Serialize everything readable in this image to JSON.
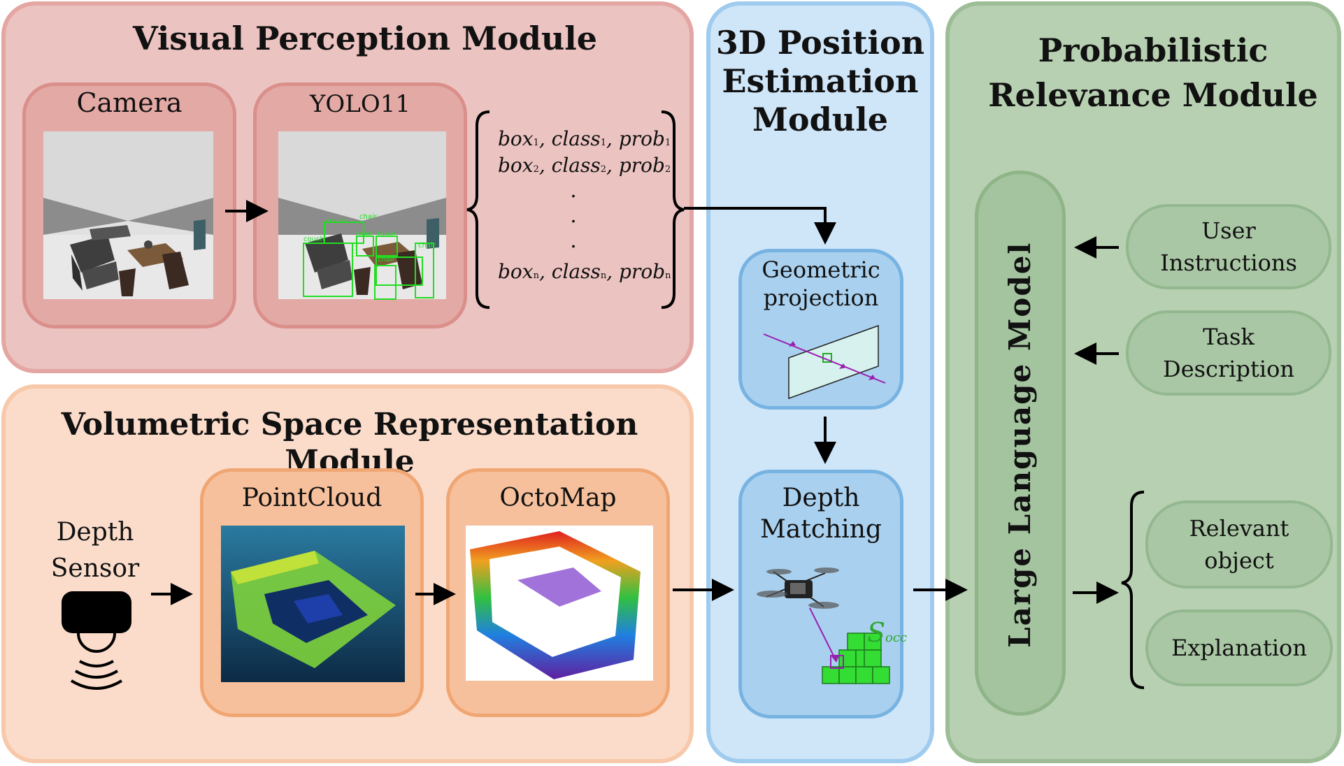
{
  "colors": {
    "visual_bg": "#ebc3c1",
    "visual_border": "#e4a6a3",
    "visual_sub_bg": "#e3a9a5",
    "visual_sub_border": "#da8f8a",
    "volumetric_bg": "#fbdcca",
    "volumetric_border": "#f7c9aa",
    "volumetric_sub_bg": "#f7c09c",
    "volumetric_sub_border": "#f0a673",
    "position_bg": "#cfe5f8",
    "position_border": "#9fcbef",
    "position_sub_bg": "#a9d0ee",
    "position_sub_border": "#77b3e2",
    "relevance_bg": "#b7d0b2",
    "relevance_border": "#9cbd96",
    "llm_bg": "#a3c49e",
    "llm_border": "#8eb488",
    "detection_green": "#22dd22",
    "ray_purple": "#9a1fb0",
    "socc_green": "#2fa62f"
  },
  "visual_module": {
    "title": "Visual Perception Module",
    "camera": {
      "label": "Camera",
      "image": "simulated-room-render"
    },
    "yolo": {
      "label": "YOLO11",
      "image": "room-render-with-detection-boxes",
      "detections": [
        "couch",
        "chair",
        "couch",
        "table",
        "chair",
        "chair",
        "chair"
      ]
    },
    "output_list": [
      {
        "box": "box",
        "class": "class",
        "prob": "prob",
        "index": "1"
      },
      {
        "box": "box",
        "class": "class",
        "prob": "prob",
        "index": "2"
      },
      {
        "box": "box",
        "class": "class",
        "prob": "prob",
        "index": "n"
      }
    ],
    "ellipsis": ".",
    "separator": ", "
  },
  "volumetric_module": {
    "title": "Volumetric Space Representation Module",
    "sensor": {
      "label": "Depth\nSensor",
      "icon": "depth-sensor-icon"
    },
    "pointcloud": {
      "label": "PointCloud",
      "image": "pointcloud-render"
    },
    "octomap": {
      "label": "OctoMap",
      "image": "octomap-voxel-render"
    }
  },
  "position_module": {
    "title": "3D Position\nEstimation\nModule",
    "geometric": {
      "label": "Geometric\nprojection",
      "icon": "projection-plane-icon"
    },
    "depth_matching": {
      "label": "Depth\nMatching",
      "icon": "drone-icon"
    },
    "s_occ": {
      "symbol": "S",
      "subscript": "occ"
    }
  },
  "relevance_module": {
    "title": "Probabilistic\nRelevance Module",
    "llm_label": "Large Language Model",
    "inputs": [
      "User\nInstructions",
      "Task\nDescription"
    ],
    "outputs": [
      "Relevant\nobject",
      "Explanation"
    ]
  }
}
